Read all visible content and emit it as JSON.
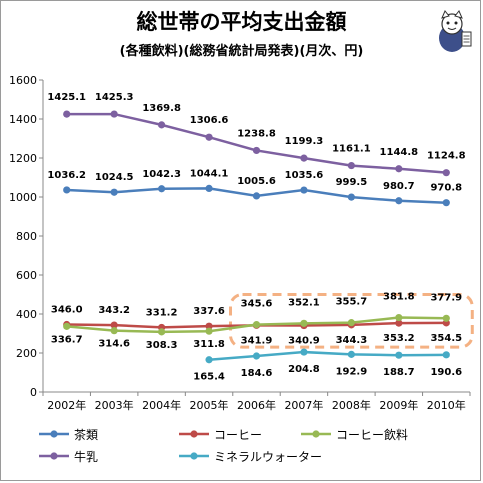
{
  "chart_data": {
    "type": "line",
    "title": "総世帯の平均支出金額",
    "subtitle": "(各種飲料)(総務省統計局発表)(月次、円)",
    "x": [
      "2002年",
      "2003年",
      "2004年",
      "2005年",
      "2006年",
      "2007年",
      "2008年",
      "2009年",
      "2010年"
    ],
    "y_ticks": [
      "0",
      "200",
      "400",
      "600",
      "800",
      "1000",
      "1200",
      "1400",
      "1600"
    ],
    "ylim": [
      0,
      1600
    ],
    "grid": false,
    "legend": "bottom",
    "series": [
      {
        "name": "茶類",
        "color": "#4a7ebb",
        "values": [
          1036.2,
          1024.5,
          1042.3,
          1044.1,
          1005.6,
          1035.6,
          999.5,
          980.7,
          970.8
        ],
        "labels": [
          "1036.2",
          "1024.5",
          "1042.3",
          "1044.1",
          "1005.6",
          "1035.6",
          "999.5",
          "980.7",
          "970.8"
        ]
      },
      {
        "name": "コーヒー",
        "color": "#be4b48",
        "values": [
          346.0,
          343.2,
          331.2,
          337.6,
          341.9,
          340.9,
          344.3,
          353.2,
          354.5
        ],
        "labels": [
          "346.0",
          "343.2",
          "331.2",
          "337.6",
          "341.9",
          "340.9",
          "344.3",
          "353.2",
          "354.5"
        ]
      },
      {
        "name": "コーヒー飲料",
        "color": "#98b954",
        "values": [
          336.7,
          314.6,
          308.3,
          311.8,
          345.6,
          352.1,
          355.7,
          381.8,
          377.9
        ],
        "labels": [
          "336.7",
          "314.6",
          "308.3",
          "311.8",
          "345.6",
          "352.1",
          "355.7",
          "381.8",
          "377.9"
        ]
      },
      {
        "name": "牛乳",
        "color": "#7d60a0",
        "values": [
          1425.1,
          1425.3,
          1369.8,
          1306.6,
          1238.8,
          1199.3,
          1161.1,
          1144.8,
          1124.8
        ],
        "labels": [
          "1425.1",
          "1425.3",
          "1369.8",
          "1306.6",
          "1238.8",
          "1199.3",
          "1161.1",
          "1144.8",
          "1124.8"
        ]
      },
      {
        "name": "ミネラルウォーター",
        "color": "#46aac5",
        "values": [
          null,
          null,
          null,
          165.4,
          184.6,
          204.8,
          192.9,
          188.7,
          190.6
        ],
        "labels": [
          "",
          "",
          "",
          "165.4",
          "184.6",
          "204.8",
          "192.9",
          "188.7",
          "190.6"
        ]
      }
    ],
    "highlight_color": "#f4b183"
  }
}
